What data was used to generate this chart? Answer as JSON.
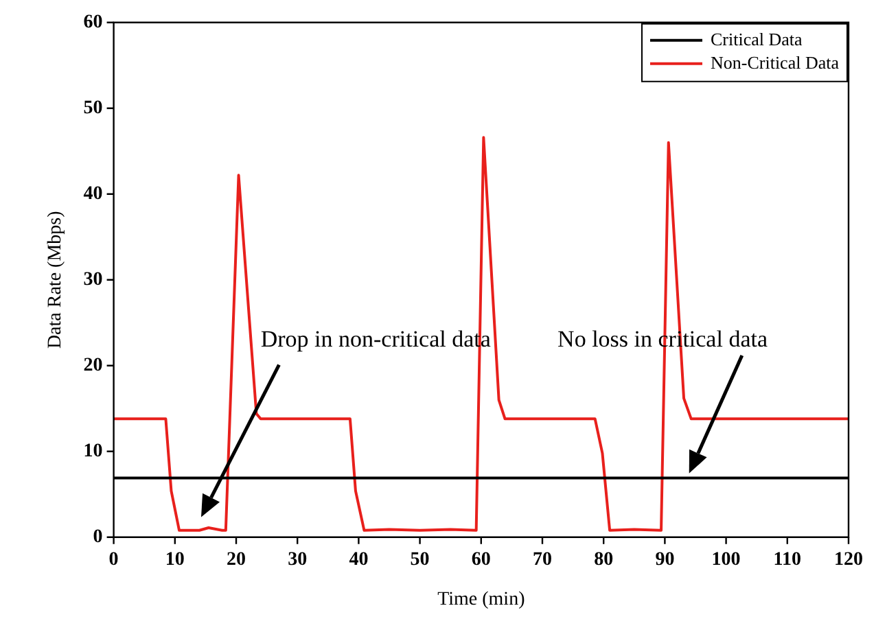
{
  "chart_data": {
    "type": "line",
    "xlabel": "Time (min)",
    "ylabel": "Data Rate (Mbps)",
    "xlim": [
      0,
      120
    ],
    "xticks": [
      0,
      10,
      20,
      30,
      40,
      50,
      60,
      70,
      80,
      90,
      100,
      110,
      120
    ],
    "ylim": [
      0,
      60
    ],
    "yticks": [
      0,
      10,
      20,
      30,
      40,
      50,
      60
    ],
    "grid": false,
    "legend": "top right",
    "marker": "none",
    "line_style": "solid",
    "series": [
      {
        "name": "Critical Data",
        "color": "#000000",
        "x": [
          0,
          120
        ],
        "values": [
          6.9,
          6.9
        ]
      },
      {
        "name": "Non-Critical Data",
        "color": "#e8201c",
        "x": [
          0,
          8.5,
          9.4,
          10.7,
          14,
          15.5,
          17.7,
          18.3,
          20.4,
          23.3,
          24,
          38.6,
          39.5,
          40.9,
          45,
          50,
          55,
          59.2,
          60.4,
          62.9,
          63.9,
          78.6,
          79.8,
          81,
          85,
          89.4,
          90.6,
          93.1,
          94.3,
          120
        ],
        "values": [
          13.8,
          13.8,
          5.4,
          0.8,
          0.8,
          1.1,
          0.8,
          0.8,
          42.2,
          14.4,
          13.8,
          13.8,
          5.4,
          0.8,
          0.9,
          0.8,
          0.9,
          0.8,
          46.6,
          16,
          13.8,
          13.8,
          9.8,
          0.8,
          0.9,
          0.8,
          46,
          16.2,
          13.8,
          13.8
        ]
      }
    ],
    "annotations": [
      "Drop in non-critical data",
      "No loss in critical data"
    ]
  }
}
